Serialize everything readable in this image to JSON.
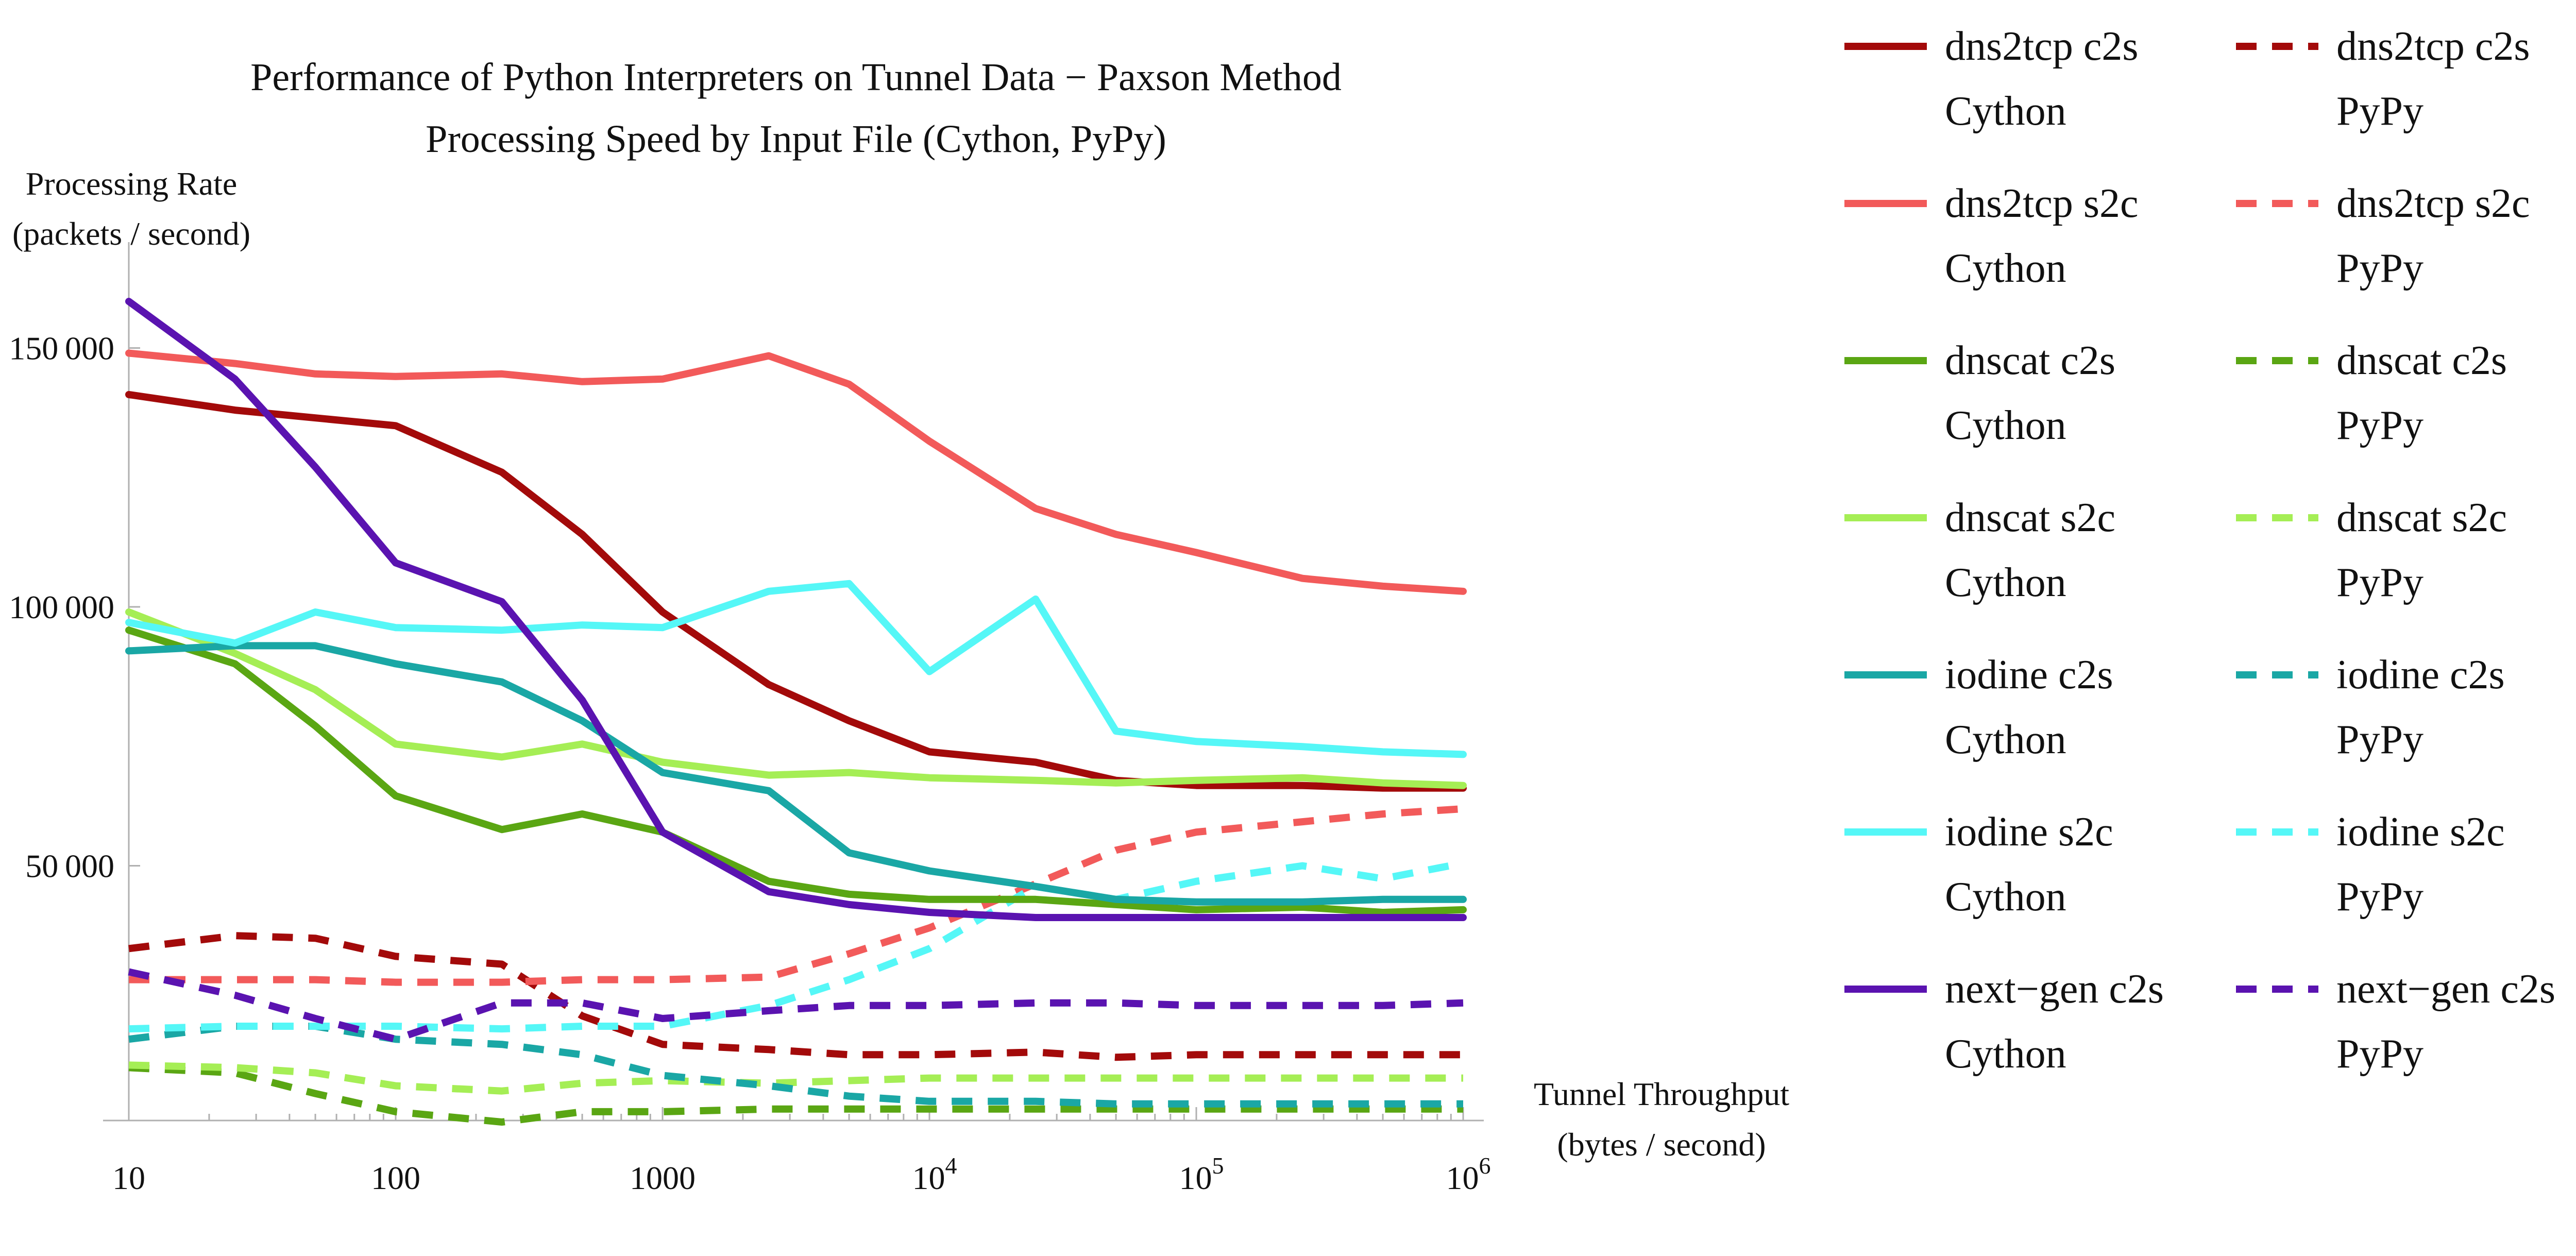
{
  "chart_data": {
    "type": "line",
    "title": "Performance of Python Interpreters on Tunnel Data − Paxson Method",
    "subtitle": "Processing Speed by Input File (Cython, PyPy)",
    "ylabel_line1": "Processing Rate",
    "ylabel_line2": "(packets / second)",
    "xlabel_line1": "Tunnel Throughput",
    "xlabel_line2": "(bytes / second)",
    "x_scale": "log",
    "xlim": [
      10,
      1000000
    ],
    "ylim": [
      0,
      160000
    ],
    "x_ticks": [
      {
        "value": 10,
        "label": "10"
      },
      {
        "value": 100,
        "label": "100"
      },
      {
        "value": 1000,
        "label": "1000"
      },
      {
        "value": 10000,
        "label": "10",
        "exp": "4"
      },
      {
        "value": 100000,
        "label": "10",
        "exp": "5"
      },
      {
        "value": 1000000,
        "label": "10",
        "exp": "6"
      }
    ],
    "y_ticks": [
      {
        "value": 50000,
        "label": "50 000"
      },
      {
        "value": 100000,
        "label": "100 000"
      },
      {
        "value": 150000,
        "label": "150 000"
      }
    ],
    "grid": false,
    "legend_position": "right",
    "x": [
      10,
      25,
      50,
      100,
      250,
      500,
      1000,
      2500,
      5000,
      10000,
      25000,
      50000,
      100000,
      250000,
      500000,
      1000000
    ],
    "series": [
      {
        "name_line1": "dns2tcp c2s",
        "name_line2": "Cython",
        "color": "#a30a0a",
        "dash": false,
        "values": [
          141000,
          138000,
          136500,
          135000,
          126000,
          114000,
          99000,
          85000,
          78000,
          72000,
          70000,
          66500,
          65500,
          65500,
          65000,
          65000
        ]
      },
      {
        "name_line1": "dns2tcp s2c",
        "name_line2": "Cython",
        "color": "#f25a5a",
        "dash": false,
        "values": [
          149000,
          147000,
          145000,
          144500,
          145000,
          143500,
          144000,
          148500,
          143000,
          132000,
          119000,
          114000,
          110500,
          105500,
          104000,
          103000
        ]
      },
      {
        "name_line1": "dnscat c2s",
        "name_line2": "Cython",
        "color": "#5aa613",
        "dash": false,
        "values": [
          95500,
          89000,
          77000,
          63500,
          57000,
          60000,
          56500,
          47000,
          44500,
          43500,
          43500,
          42500,
          41500,
          42000,
          41000,
          41500
        ]
      },
      {
        "name_line1": "dnscat s2c",
        "name_line2": "Cython",
        "color": "#a5ee55",
        "dash": false,
        "values": [
          99000,
          91000,
          84000,
          73500,
          71000,
          73500,
          70000,
          67500,
          68000,
          67000,
          66500,
          66000,
          66500,
          67000,
          66000,
          65500
        ]
      },
      {
        "name_line1": "iodine c2s",
        "name_line2": "Cython",
        "color": "#1aa7a5",
        "dash": false,
        "values": [
          91500,
          92500,
          92500,
          89000,
          85500,
          78000,
          68000,
          64500,
          52500,
          49000,
          46000,
          43500,
          43000,
          43000,
          43500,
          43500
        ]
      },
      {
        "name_line1": "iodine s2c",
        "name_line2": "Cython",
        "color": "#55f7f7",
        "dash": false,
        "values": [
          97000,
          93000,
          99000,
          96000,
          95500,
          96500,
          96000,
          103000,
          104500,
          87500,
          101500,
          76000,
          74000,
          73000,
          72000,
          71500
        ]
      },
      {
        "name_line1": "next−gen c2s",
        "name_line2": "Cython",
        "color": "#5a13b0",
        "dash": false,
        "values": [
          159000,
          144000,
          127000,
          108500,
          101000,
          82000,
          56500,
          45000,
          42500,
          41000,
          40000,
          40000,
          40000,
          40000,
          40000,
          40000
        ]
      },
      {
        "name_line1": "dns2tcp c2s",
        "name_line2": "PyPy",
        "color": "#a30a0a",
        "dash": true,
        "values": [
          34000,
          36500,
          36000,
          32500,
          31000,
          21000,
          15500,
          14500,
          13500,
          13500,
          14000,
          13000,
          13500,
          13500,
          13500,
          13500
        ]
      },
      {
        "name_line1": "dns2tcp s2c",
        "name_line2": "PyPy",
        "color": "#f25a5a",
        "dash": true,
        "values": [
          28000,
          28000,
          28000,
          27500,
          27500,
          28000,
          28000,
          28500,
          33000,
          38000,
          46500,
          53000,
          56500,
          58500,
          60000,
          61000
        ]
      },
      {
        "name_line1": "dnscat c2s",
        "name_line2": "PyPy",
        "color": "#5aa613",
        "dash": true,
        "values": [
          11000,
          10000,
          6000,
          2500,
          500,
          2500,
          2500,
          3000,
          3000,
          3000,
          3000,
          3000,
          3000,
          3000,
          3000,
          3000
        ]
      },
      {
        "name_line1": "dnscat s2c",
        "name_line2": "PyPy",
        "color": "#a5ee55",
        "dash": true,
        "values": [
          11500,
          11000,
          10000,
          7500,
          6500,
          8000,
          8500,
          8000,
          8500,
          9000,
          9000,
          9000,
          9000,
          9000,
          9000,
          9000
        ]
      },
      {
        "name_line1": "iodine c2s",
        "name_line2": "PyPy",
        "color": "#1aa7a5",
        "dash": true,
        "values": [
          16500,
          19000,
          19000,
          16500,
          15500,
          13500,
          9500,
          7500,
          5500,
          4500,
          4500,
          4000,
          4000,
          4000,
          4000,
          4000
        ]
      },
      {
        "name_line1": "iodine s2c",
        "name_line2": "PyPy",
        "color": "#55f7f7",
        "dash": true,
        "values": [
          18500,
          19000,
          19000,
          19000,
          18500,
          19000,
          19000,
          23000,
          28000,
          34000,
          46000,
          43500,
          47000,
          50000,
          47500,
          50500
        ]
      },
      {
        "name_line1": "next−gen c2s",
        "name_line2": "PyPy",
        "color": "#5a13b0",
        "dash": true,
        "values": [
          29500,
          25000,
          20500,
          16500,
          23500,
          23500,
          20500,
          22000,
          23000,
          23000,
          23500,
          23500,
          23000,
          23000,
          23000,
          23500
        ]
      }
    ]
  }
}
